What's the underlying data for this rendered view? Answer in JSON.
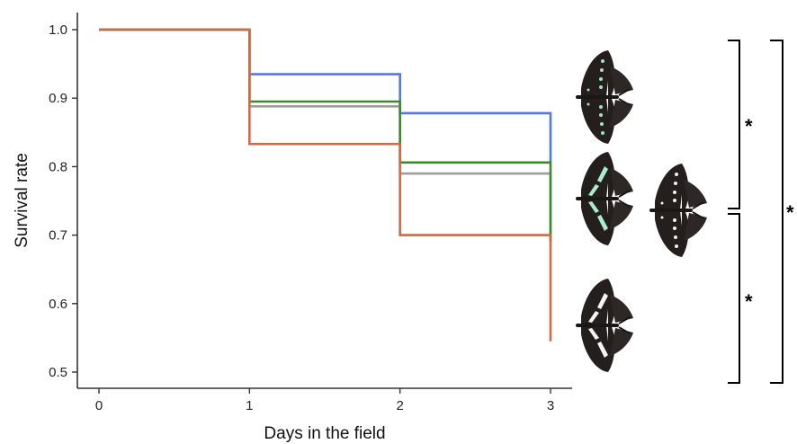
{
  "chart_data": {
    "type": "line",
    "step": true,
    "xlabel": "Days in the field",
    "ylabel": "Survival rate",
    "xlim": [
      0,
      3
    ],
    "ylim": [
      0.5,
      1.0
    ],
    "x_ticks": [
      "0",
      "1",
      "2",
      "3"
    ],
    "y_ticks": [
      "0.5",
      "0.6",
      "0.7",
      "0.8",
      "0.9",
      "1.0"
    ],
    "grid": false,
    "legend": "none (butterfly wing-pattern images at right)",
    "x": [
      0,
      1,
      2,
      3
    ],
    "series": [
      {
        "color": "#5477e8",
        "values": [
          1.0,
          0.935,
          0.878,
          0.806
        ]
      },
      {
        "color": "#9e9e9e",
        "values": [
          1.0,
          0.888,
          0.79,
          0.69
        ]
      },
      {
        "color": "#3c8a2a",
        "values": [
          1.0,
          0.895,
          0.806,
          0.69
        ]
      },
      {
        "color": "#cf6b43",
        "values": [
          1.0,
          0.833,
          0.7,
          0.545
        ]
      }
    ],
    "significance": [
      {
        "label": "*",
        "between": "top morph vs middle morphs"
      },
      {
        "label": "*",
        "between": "middle morphs vs bottom morph"
      },
      {
        "label": "*",
        "between": "top morph vs bottom morph"
      }
    ]
  },
  "images": [
    {
      "icon": "butterfly-green-spots-icon",
      "description": "butterfly with small green spots"
    },
    {
      "icon": "butterfly-green-band-icon",
      "description": "butterfly with green band"
    },
    {
      "icon": "butterfly-white-spots-icon",
      "description": "butterfly with white spots"
    },
    {
      "icon": "butterfly-white-band-icon",
      "description": "butterfly with white band"
    }
  ]
}
